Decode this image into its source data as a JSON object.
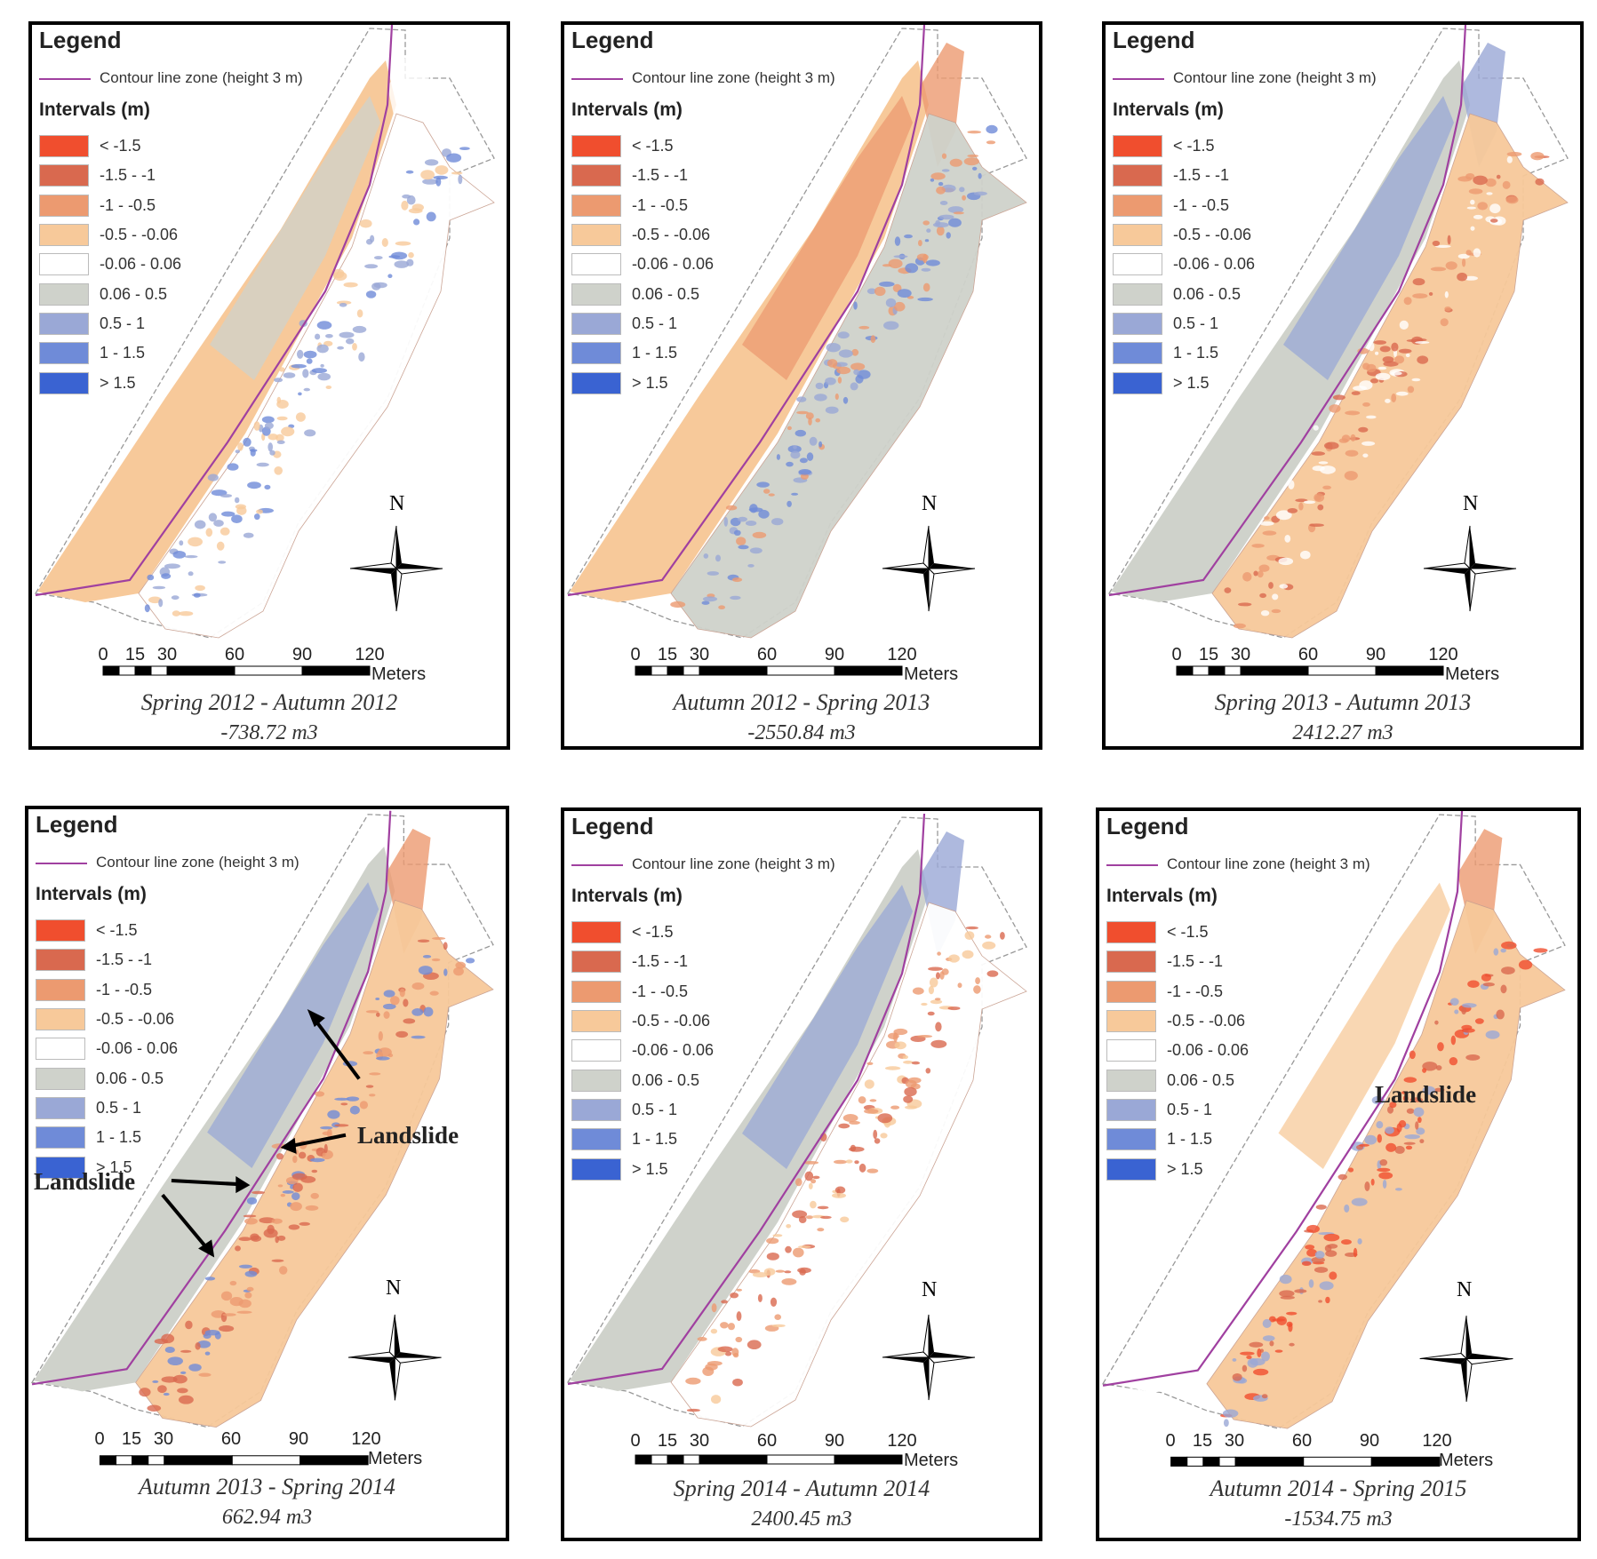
{
  "legend": {
    "title": "Legend",
    "contour_label": "Contour line zone (height 3 m)",
    "intervals_title": "Intervals (m)",
    "classes": [
      {
        "label": "< -1.5",
        "color": "#f04e2e"
      },
      {
        "label": "-1.5 - -1",
        "color": "#d9694f"
      },
      {
        "label": "-1 - -0.5",
        "color": "#ec9a70"
      },
      {
        "label": "-0.5 - -0.06",
        "color": "#f7c99a"
      },
      {
        "label": "-0.06 - 0.06",
        "color": "#ffffff"
      },
      {
        "label": "0.06 - 0.5",
        "color": "#cfd2cb"
      },
      {
        "label": "0.5 - 1",
        "color": "#9aa8d6"
      },
      {
        "label": "1 - 1.5",
        "color": "#6f8bd8"
      },
      {
        "label": "> 1.5",
        "color": "#3a63d2"
      }
    ],
    "contour_color": "#a040a0"
  },
  "north_label": "N",
  "scale": {
    "ticks": [
      "0",
      "15",
      "30",
      "60",
      "90",
      "120"
    ],
    "unit": "Meters"
  },
  "panels": [
    {
      "period": "Spring 2012 - Autumn 2012",
      "volume": "-738.72 m3",
      "landslides": []
    },
    {
      "period": "Autumn 2012 - Spring 2013",
      "volume": "-2550.84 m3",
      "landslides": []
    },
    {
      "period": "Spring 2013 - Autumn 2013",
      "volume": "2412.27 m3",
      "landslides": []
    },
    {
      "period": "Autumn 2013 - Spring 2014",
      "volume": "662.94 m3",
      "landslides": [
        "Landslide",
        "Landslide"
      ]
    },
    {
      "period": "Spring 2014 - Autumn 2014",
      "volume": "2400.45 m3",
      "landslides": []
    },
    {
      "period": "Autumn 2014 - Spring 2015",
      "volume": "-1534.75 m3",
      "landslides": [
        "Landslide"
      ]
    }
  ]
}
